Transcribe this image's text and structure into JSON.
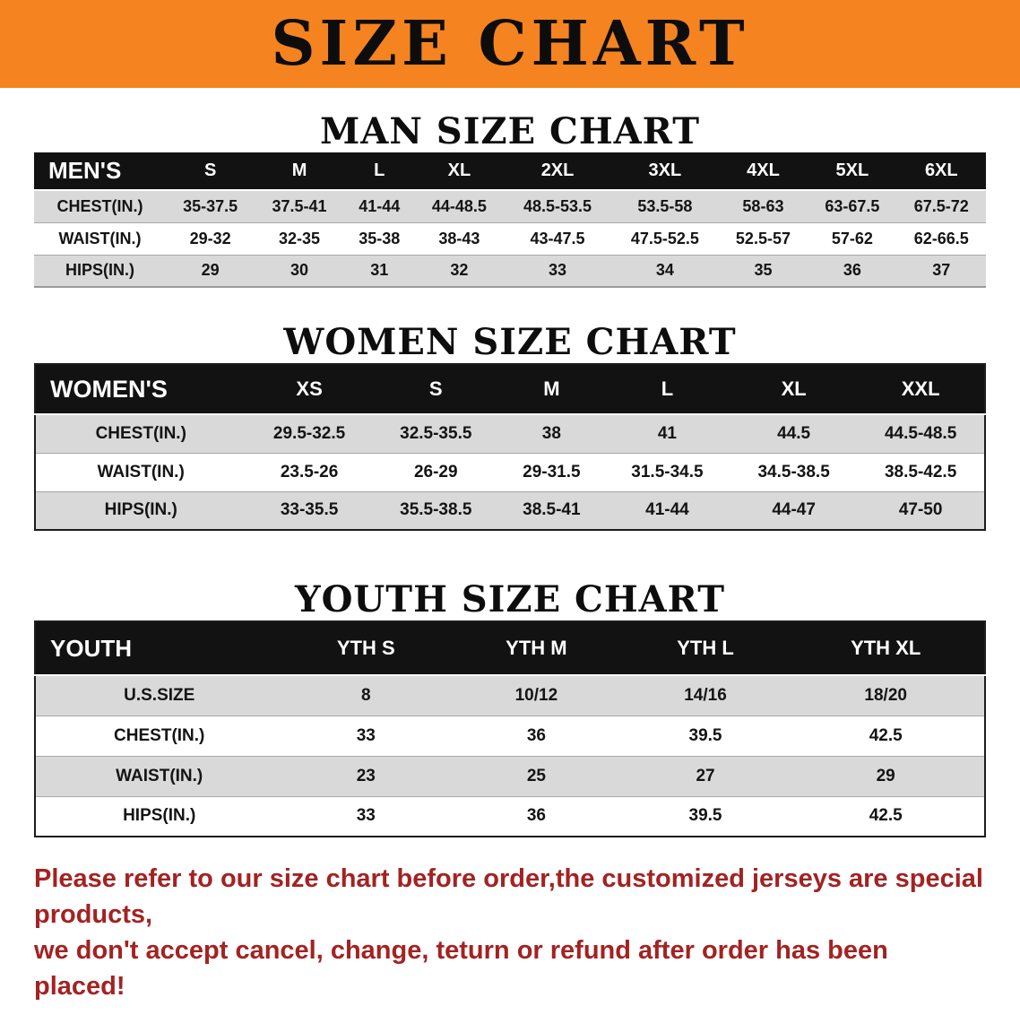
{
  "banner": {
    "title": "SIZE CHART",
    "bg_color": "#f5831f"
  },
  "headings": {
    "man": "MAN SIZE CHART",
    "women": "WOMEN SIZE CHART",
    "youth": "YOUTH SIZE CHART"
  },
  "tables": {
    "men": {
      "header": [
        "MEN'S",
        "S",
        "M",
        "L",
        "XL",
        "2XL",
        "3XL",
        "4XL",
        "5XL",
        "6XL"
      ],
      "rows": [
        [
          "CHEST(IN.)",
          "35-37.5",
          "37.5-41",
          "41-44",
          "44-48.5",
          "48.5-53.5",
          "53.5-58",
          "58-63",
          "63-67.5",
          "67.5-72"
        ],
        [
          "WAIST(IN.)",
          "29-32",
          "32-35",
          "35-38",
          "38-43",
          "43-47.5",
          "47.5-52.5",
          "52.5-57",
          "57-62",
          "62-66.5"
        ],
        [
          "HIPS(IN.)",
          "29",
          "30",
          "31",
          "32",
          "33",
          "34",
          "35",
          "36",
          "37"
        ]
      ]
    },
    "women": {
      "header": [
        "WOMEN'S",
        "XS",
        "S",
        "M",
        "L",
        "XL",
        "XXL"
      ],
      "rows": [
        [
          "CHEST(IN.)",
          "29.5-32.5",
          "32.5-35.5",
          "38",
          "41",
          "44.5",
          "44.5-48.5"
        ],
        [
          "WAIST(IN.)",
          "23.5-26",
          "26-29",
          "29-31.5",
          "31.5-34.5",
          "34.5-38.5",
          "38.5-42.5"
        ],
        [
          "HIPS(IN.)",
          "33-35.5",
          "35.5-38.5",
          "38.5-41",
          "41-44",
          "44-47",
          "47-50"
        ]
      ]
    },
    "youth": {
      "header": [
        "YOUTH",
        "YTH S",
        "YTH M",
        "YTH L",
        "YTH XL"
      ],
      "rows": [
        [
          "U.S.SIZE",
          "8",
          "10/12",
          "14/16",
          "18/20"
        ],
        [
          "CHEST(IN.)",
          "33",
          "36",
          "39.5",
          "42.5"
        ],
        [
          "WAIST(IN.)",
          "23",
          "25",
          "27",
          "29"
        ],
        [
          "HIPS(IN.)",
          "33",
          "36",
          "39.5",
          "42.5"
        ]
      ]
    }
  },
  "disclaimer": {
    "line1": "Please refer to our size chart before order,the customized jerseys are special products,",
    "line2": "we don't accept cancel, change, teturn or refund after order has been placed!",
    "color": "#a42222"
  }
}
